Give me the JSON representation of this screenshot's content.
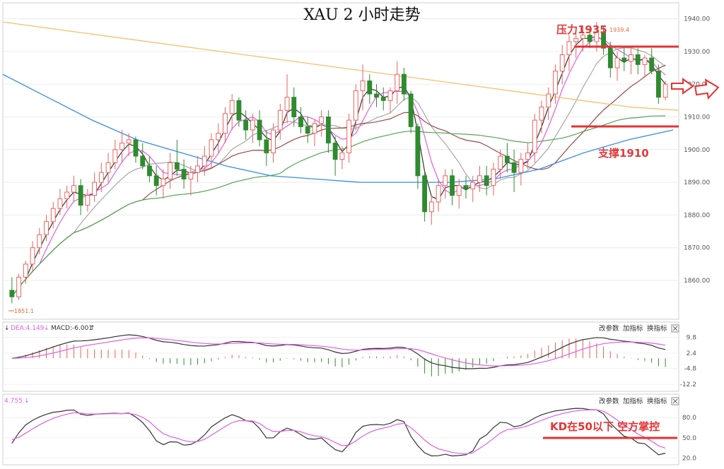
{
  "title": "XAU 2 小时走势",
  "chart_data": [
    {
      "type": "candlestick",
      "title": "XAU 2 小时走势",
      "y_ticks": [
        "1940.00",
        "1930.00",
        "1920.00",
        "1910.00",
        "1900.00",
        "1890.00",
        "1880.00",
        "1870.00",
        "1860.00"
      ],
      "ylim": [
        1849,
        1944
      ],
      "low_marker": "1851.1",
      "high_marker": "1939.4",
      "annotations": {
        "resistance": "压力1935",
        "support": "支撑1910"
      },
      "levels": {
        "resistance": 1935,
        "support": 1910
      },
      "ohlc": [
        [
          1857,
          1861,
          1853,
          1855
        ],
        [
          1855,
          1862,
          1854,
          1861
        ],
        [
          1861,
          1866,
          1859,
          1865
        ],
        [
          1865,
          1872,
          1863,
          1870
        ],
        [
          1870,
          1876,
          1868,
          1874
        ],
        [
          1874,
          1880,
          1872,
          1878
        ],
        [
          1878,
          1884,
          1876,
          1882
        ],
        [
          1882,
          1888,
          1880,
          1885
        ],
        [
          1885,
          1889,
          1882,
          1887
        ],
        [
          1887,
          1892,
          1884,
          1889
        ],
        [
          1889,
          1891,
          1880,
          1883
        ],
        [
          1883,
          1888,
          1881,
          1886
        ],
        [
          1886,
          1893,
          1884,
          1890
        ],
        [
          1890,
          1896,
          1887,
          1893
        ],
        [
          1893,
          1899,
          1890,
          1896
        ],
        [
          1896,
          1903,
          1894,
          1900
        ],
        [
          1900,
          1906,
          1896,
          1902
        ],
        [
          1902,
          1905,
          1898,
          1903
        ],
        [
          1903,
          1904,
          1896,
          1898
        ],
        [
          1898,
          1902,
          1894,
          1895
        ],
        [
          1895,
          1898,
          1890,
          1892
        ],
        [
          1892,
          1895,
          1886,
          1889
        ],
        [
          1889,
          1894,
          1885,
          1891
        ],
        [
          1891,
          1899,
          1888,
          1896
        ],
        [
          1896,
          1903,
          1892,
          1894
        ],
        [
          1894,
          1897,
          1888,
          1891
        ],
        [
          1891,
          1895,
          1886,
          1893
        ],
        [
          1893,
          1898,
          1890,
          1895
        ],
        [
          1895,
          1901,
          1892,
          1898
        ],
        [
          1898,
          1905,
          1894,
          1903
        ],
        [
          1903,
          1908,
          1899,
          1905
        ],
        [
          1905,
          1913,
          1902,
          1911
        ],
        [
          1911,
          1917,
          1906,
          1915
        ],
        [
          1915,
          1916,
          1907,
          1909
        ],
        [
          1909,
          1912,
          1903,
          1906
        ],
        [
          1906,
          1911,
          1902,
          1909
        ],
        [
          1909,
          1912,
          1901,
          1903
        ],
        [
          1903,
          1906,
          1895,
          1899
        ],
        [
          1899,
          1908,
          1896,
          1906
        ],
        [
          1906,
          1914,
          1903,
          1912
        ],
        [
          1912,
          1923,
          1908,
          1916
        ],
        [
          1916,
          1919,
          1907,
          1910
        ],
        [
          1910,
          1913,
          1905,
          1907
        ],
        [
          1907,
          1910,
          1902,
          1905
        ],
        [
          1905,
          1909,
          1901,
          1908
        ],
        [
          1908,
          1912,
          1904,
          1910
        ],
        [
          1910,
          1912,
          1899,
          1902
        ],
        [
          1902,
          1904,
          1892,
          1897
        ],
        [
          1897,
          1901,
          1894,
          1899
        ],
        [
          1899,
          1911,
          1896,
          1909
        ],
        [
          1909,
          1920,
          1906,
          1918
        ],
        [
          1918,
          1926,
          1912,
          1921
        ],
        [
          1921,
          1923,
          1914,
          1917
        ],
        [
          1917,
          1920,
          1913,
          1916
        ],
        [
          1916,
          1919,
          1912,
          1915
        ],
        [
          1915,
          1919,
          1911,
          1918
        ],
        [
          1918,
          1927,
          1914,
          1923
        ],
        [
          1923,
          1925,
          1915,
          1917
        ],
        [
          1917,
          1918,
          1905,
          1907
        ],
        [
          1907,
          1908,
          1888,
          1892
        ],
        [
          1892,
          1893,
          1878,
          1881
        ],
        [
          1881,
          1886,
          1877,
          1884
        ],
        [
          1884,
          1891,
          1881,
          1889
        ],
        [
          1889,
          1894,
          1885,
          1892
        ],
        [
          1892,
          1894,
          1883,
          1886
        ],
        [
          1886,
          1891,
          1882,
          1889
        ],
        [
          1889,
          1892,
          1885,
          1888
        ],
        [
          1888,
          1892,
          1884,
          1890
        ],
        [
          1890,
          1895,
          1887,
          1892
        ],
        [
          1892,
          1895,
          1886,
          1889
        ],
        [
          1889,
          1896,
          1886,
          1894
        ],
        [
          1894,
          1900,
          1891,
          1898
        ],
        [
          1898,
          1902,
          1893,
          1896
        ],
        [
          1896,
          1900,
          1887,
          1893
        ],
        [
          1893,
          1899,
          1889,
          1897
        ],
        [
          1897,
          1902,
          1894,
          1899
        ],
        [
          1899,
          1911,
          1896,
          1909
        ],
        [
          1909,
          1915,
          1905,
          1913
        ],
        [
          1913,
          1919,
          1909,
          1917
        ],
        [
          1917,
          1926,
          1914,
          1924
        ],
        [
          1924,
          1932,
          1920,
          1929
        ],
        [
          1929,
          1935,
          1924,
          1933
        ],
        [
          1933,
          1936,
          1928,
          1934
        ],
        [
          1934,
          1938,
          1930,
          1935
        ],
        [
          1935,
          1937,
          1931,
          1933
        ],
        [
          1933,
          1939,
          1930,
          1936
        ],
        [
          1936,
          1938,
          1929,
          1931
        ],
        [
          1931,
          1933,
          1922,
          1925
        ],
        [
          1925,
          1930,
          1921,
          1928
        ],
        [
          1928,
          1931,
          1924,
          1927
        ],
        [
          1927,
          1931,
          1923,
          1929
        ],
        [
          1929,
          1931,
          1923,
          1926
        ],
        [
          1926,
          1929,
          1922,
          1928
        ],
        [
          1928,
          1931,
          1923,
          1924
        ],
        [
          1924,
          1926,
          1914,
          1916
        ],
        [
          1916,
          1921,
          1915,
          1920
        ]
      ]
    },
    {
      "type": "macd",
      "legend": [
        "DEA:4.149",
        "MACD:-6.001"
      ],
      "y_ticks": [
        "9.8",
        "2.4",
        "-4.8",
        "-12.2"
      ],
      "ylim": [
        -13.5,
        13
      ],
      "buttons": [
        "改参数",
        "加指标",
        "换指标"
      ]
    },
    {
      "type": "kd",
      "legend": [
        "4.755"
      ],
      "y_ticks": [
        "80.0",
        "50.0",
        "20.0"
      ],
      "ylim": [
        12,
        98
      ],
      "annotation": "KD在50以下   空方掌控",
      "buttons": [
        "改参数",
        "加指标",
        "换指标"
      ]
    }
  ],
  "colors": {
    "up": "#e8635f",
    "down": "#2e8b2e",
    "red_line": "#e63232",
    "ma_black": "#333333",
    "ma_pink": "#e15fe0",
    "ma_gray": "#a8a8a8",
    "ma_brown": "#9a4a4a",
    "ma_green": "#55a455",
    "ma_blue": "#3a8ee6",
    "ma_orange": "#f5c06e"
  }
}
